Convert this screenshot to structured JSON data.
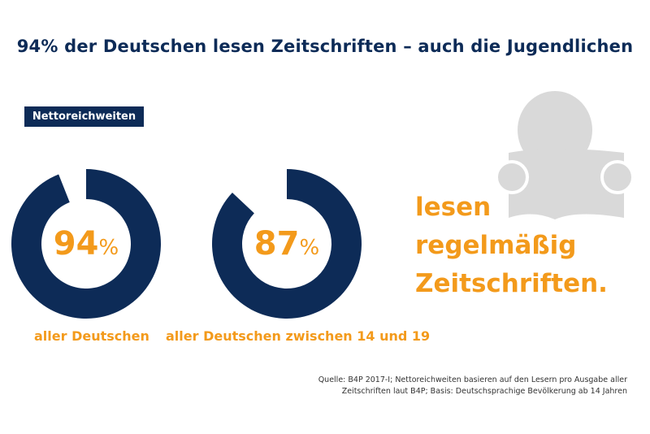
{
  "title": "94% der Deutschen lesen Zeitschriften – auch die Jugendlichen",
  "badge": "Nettoreichweiten",
  "claim": [
    "lesen",
    "regelmäßig",
    "Zeitschriften."
  ],
  "source": [
    "Quelle: B4P 2017-I; Nettoreichweiten basieren auf den Lesern pro Ausgabe aller",
    "Zeitschriften laut B4P; Basis: Deutschsprachige Bevölkerung ab 14 Jahren"
  ],
  "colors": {
    "navy": "#0d2b57",
    "orange": "#f39a1b",
    "icon_grey": "#d9d9d9"
  },
  "icon": "person-reading-icon",
  "chart_data": {
    "type": "donut",
    "series": [
      {
        "category": "aller Deutschen",
        "value": 94,
        "label": "94",
        "unit": "%"
      },
      {
        "category": "aller Deutschen zwischen 14 und 19",
        "value": 87,
        "label": "87",
        "unit": "%"
      }
    ],
    "max": 100
  }
}
